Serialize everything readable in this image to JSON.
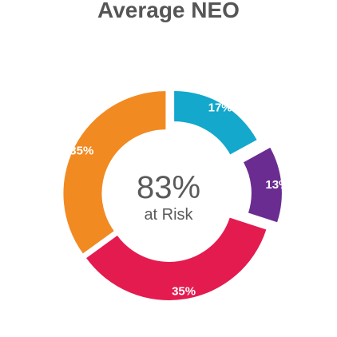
{
  "chart_data": {
    "type": "pie",
    "title": "Average NEO",
    "center": {
      "value": "83%",
      "caption": "at Risk"
    },
    "slices": [
      {
        "label": "17%",
        "value": 17,
        "color": "#13a8cc"
      },
      {
        "label": "13%",
        "value": 13,
        "color": "#6a2c91"
      },
      {
        "label": "35%",
        "value": 35,
        "color": "#e41b4f"
      },
      {
        "label": "35%",
        "value": 35,
        "color": "#f28a22"
      }
    ]
  }
}
